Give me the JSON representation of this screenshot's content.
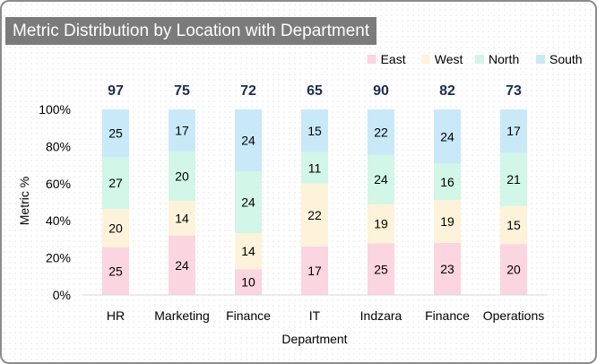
{
  "chart_data": {
    "type": "bar",
    "stacked": true,
    "normalized": true,
    "title": "Metric Distribution by Location with Department",
    "xlabel": "Department",
    "ylabel": "Metric %",
    "ylim": [
      0,
      100
    ],
    "yticks": [
      "0%",
      "20%",
      "40%",
      "60%",
      "80%",
      "100%"
    ],
    "categories": [
      "HR",
      "Marketing",
      "Finance",
      "IT",
      "Indzara",
      "Finance",
      "Operations"
    ],
    "totals": [
      97,
      75,
      72,
      65,
      90,
      82,
      73
    ],
    "series": [
      {
        "name": "East",
        "color": "#fbd5e0",
        "values": [
          25,
          24,
          10,
          17,
          25,
          23,
          20
        ]
      },
      {
        "name": "West",
        "color": "#fdf3da",
        "values": [
          20,
          14,
          14,
          22,
          19,
          19,
          15
        ]
      },
      {
        "name": "North",
        "color": "#d2f6e7",
        "values": [
          27,
          20,
          24,
          11,
          24,
          16,
          21
        ]
      },
      {
        "name": "South",
        "color": "#c9e9f9",
        "values": [
          25,
          17,
          24,
          15,
          22,
          24,
          17
        ]
      }
    ],
    "legend_position": "top-right",
    "grid": false
  }
}
